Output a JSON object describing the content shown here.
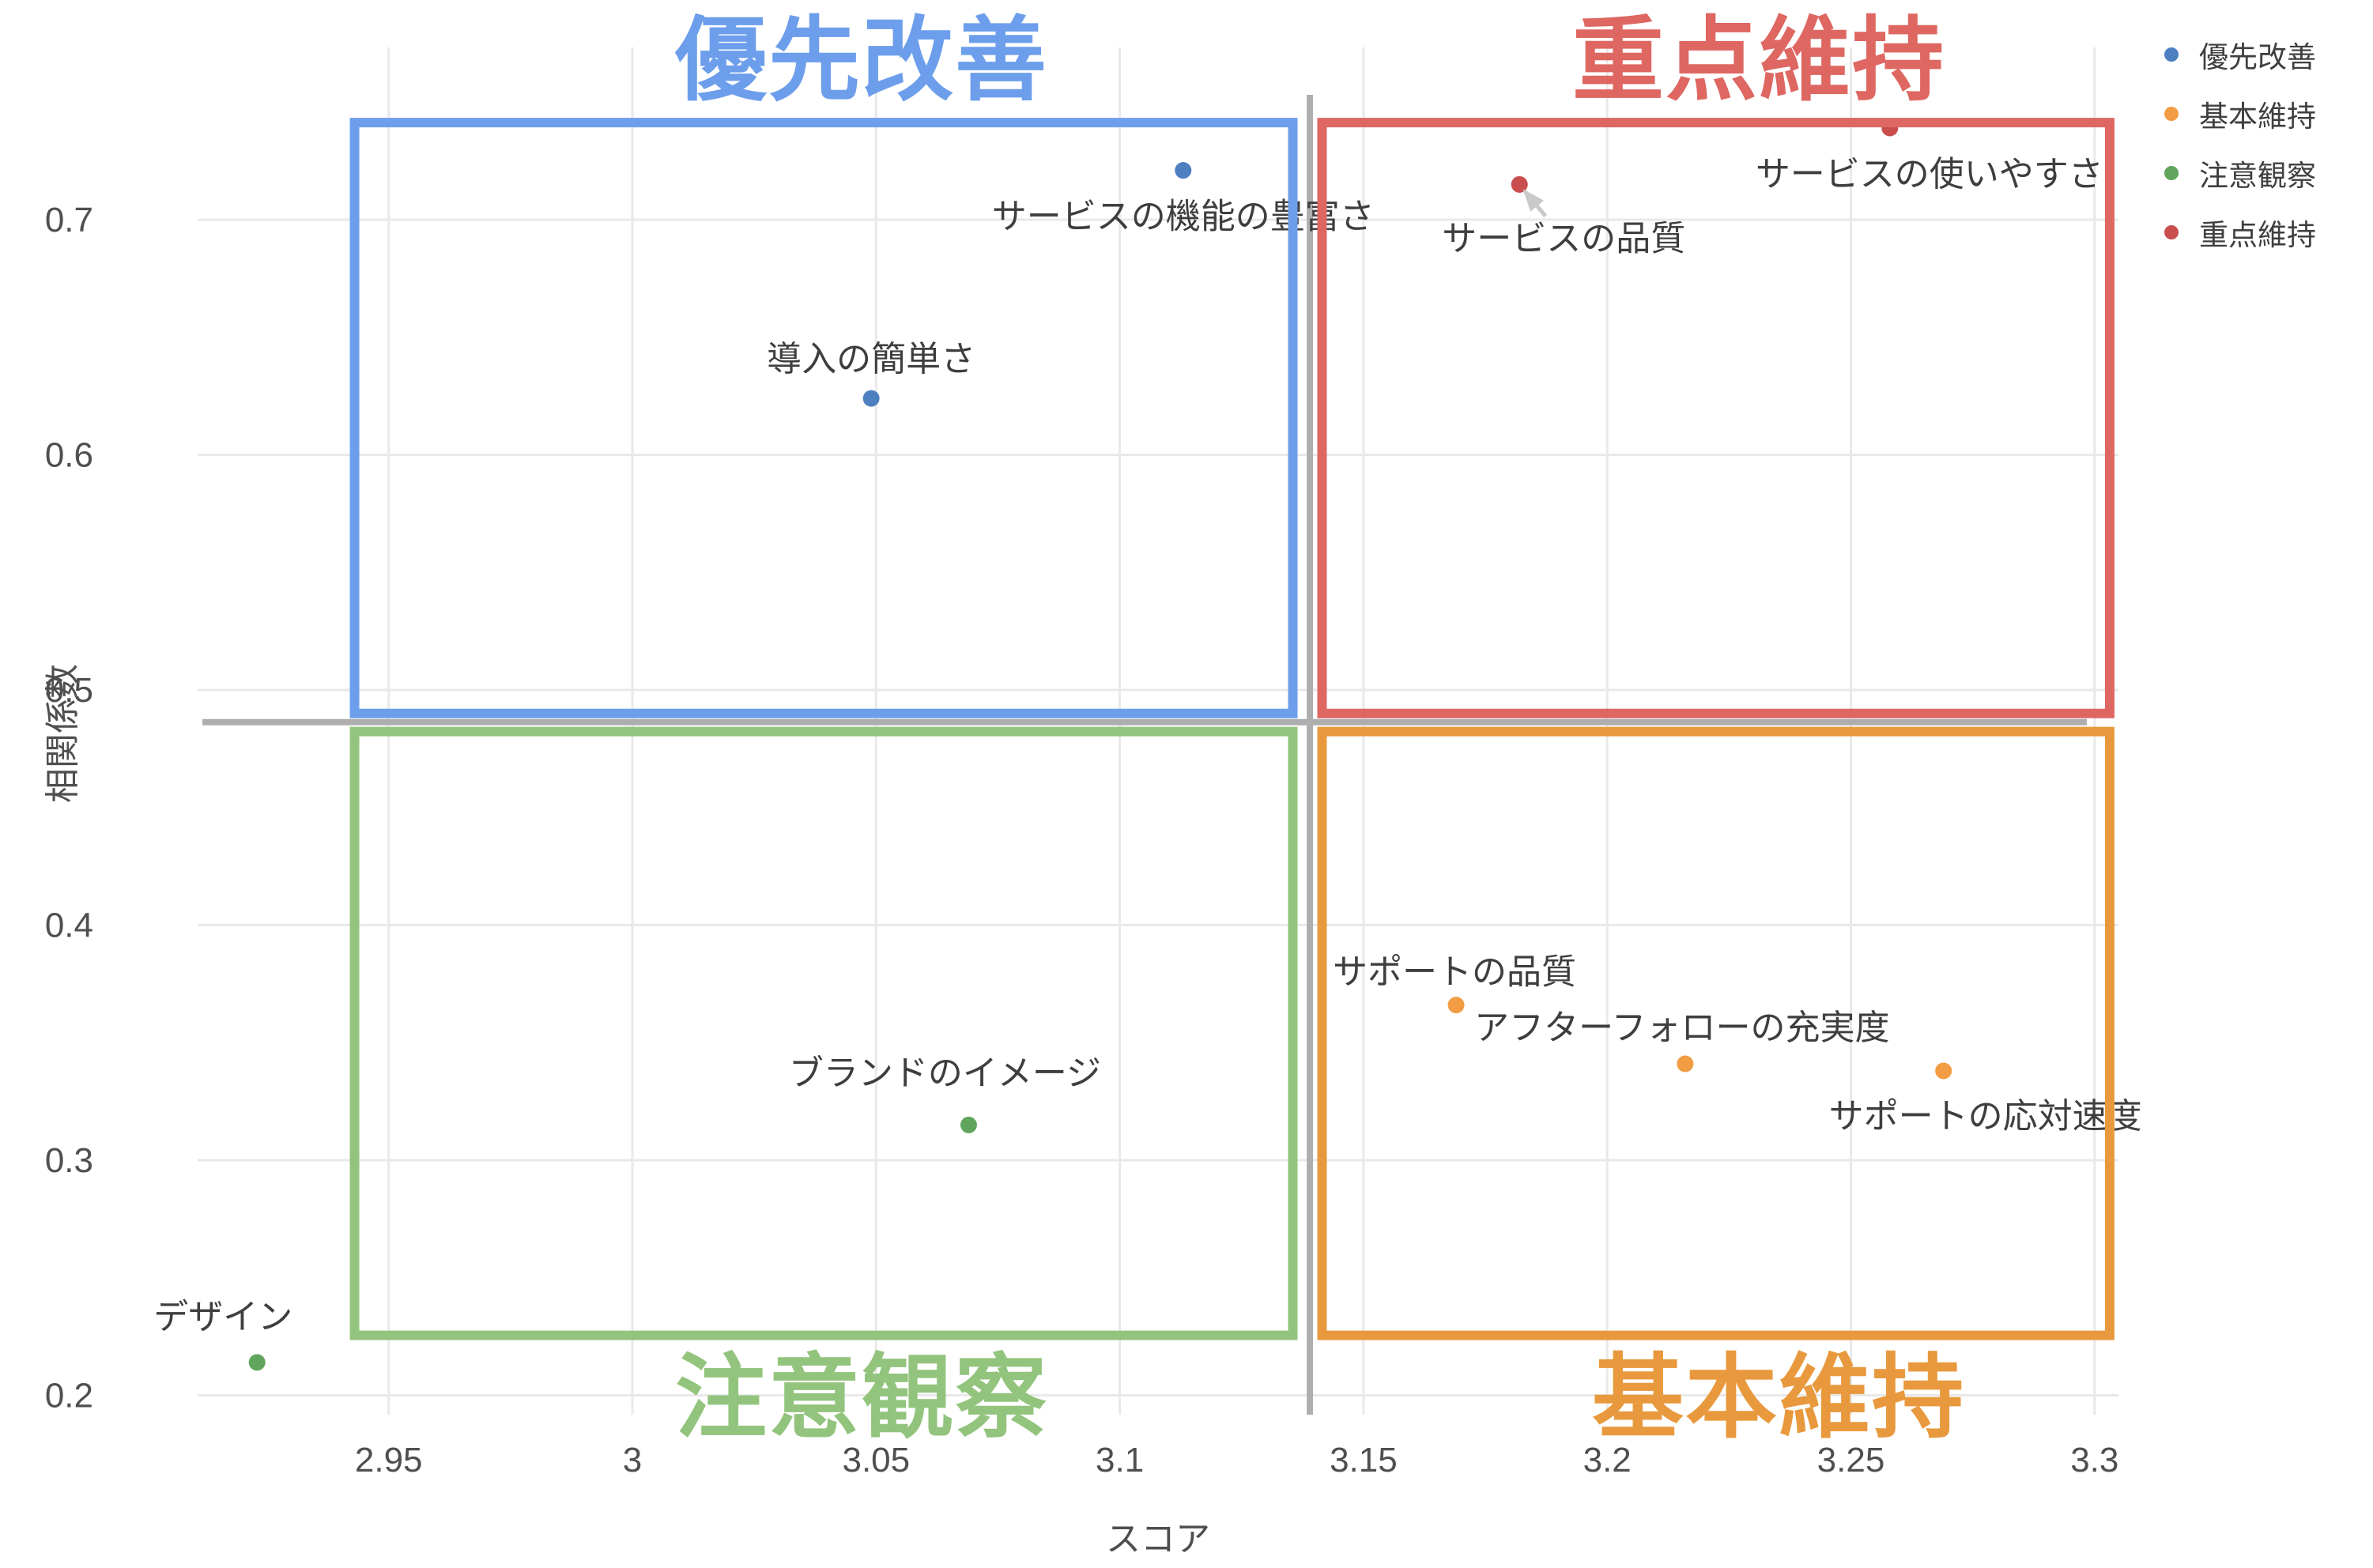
{
  "chart_data": {
    "type": "scatter",
    "title": "",
    "xlabel": "スコア",
    "ylabel": "相関係数",
    "xlim": [
      2.91,
      3.305
    ],
    "ylim": [
      0.192,
      0.773
    ],
    "grid": true,
    "legend_position": "top-right",
    "x_ticks": [
      {
        "v": 2.95,
        "label": "2.95"
      },
      {
        "v": 3.0,
        "label": "3"
      },
      {
        "v": 3.05,
        "label": "3.05"
      },
      {
        "v": 3.1,
        "label": "3.1"
      },
      {
        "v": 3.15,
        "label": "3.15"
      },
      {
        "v": 3.2,
        "label": "3.2"
      },
      {
        "v": 3.25,
        "label": "3.25"
      },
      {
        "v": 3.3,
        "label": "3.3"
      }
    ],
    "y_ticks": [
      {
        "v": 0.2,
        "label": "0.2"
      },
      {
        "v": 0.3,
        "label": "0.3"
      },
      {
        "v": 0.4,
        "label": "0.4"
      },
      {
        "v": 0.5,
        "label": "0.5"
      },
      {
        "v": 0.6,
        "label": "0.6"
      },
      {
        "v": 0.7,
        "label": "0.7"
      }
    ],
    "dividers": {
      "x": 3.139,
      "y": 0.4863
    },
    "quadrants": [
      {
        "id": "priority-improve",
        "title": "優先改善",
        "color": "#6d9eeb",
        "x0": 2.943,
        "x1": 3.1355,
        "y0": 0.49,
        "y1": 0.7413,
        "title_side": "top"
      },
      {
        "id": "key-maintain",
        "title": "重点維持",
        "color": "#de6762",
        "x0": 3.1415,
        "x1": 3.3031,
        "y0": 0.49,
        "y1": 0.7413,
        "title_side": "top"
      },
      {
        "id": "watch",
        "title": "注意観察",
        "color": "#93c47d",
        "x0": 2.943,
        "x1": 3.1355,
        "y0": 0.2255,
        "y1": 0.4823,
        "title_side": "bottom"
      },
      {
        "id": "basic-maintain",
        "title": "基本維持",
        "color": "#e9993d",
        "x0": 3.1415,
        "x1": 3.3031,
        "y0": 0.2255,
        "y1": 0.4823,
        "title_side": "bottom"
      }
    ],
    "series": [
      {
        "name": "優先改善",
        "color": "#4e7fc0",
        "points": [
          {
            "label": "サービスの機能の豊富さ",
            "x": 3.113,
            "y": 0.721,
            "label_dx": 0,
            "label_dy": 58
          },
          {
            "label": "導入の簡単さ",
            "x": 3.049,
            "y": 0.624,
            "label_dx": 0,
            "label_dy": -50
          }
        ]
      },
      {
        "name": "基本維持",
        "color": "#f29c44",
        "points": [
          {
            "label": "サポートの品質",
            "x": 3.169,
            "y": 0.366,
            "label_dx": -2,
            "label_dy": -42
          },
          {
            "label": "アフターフォローの充実度",
            "x": 3.216,
            "y": 0.341,
            "label_dx": -4,
            "label_dy": -46
          },
          {
            "label": "サポートの応対速度",
            "x": 3.269,
            "y": 0.338,
            "label_dx": 53,
            "label_dy": 57
          }
        ]
      },
      {
        "name": "注意観察",
        "color": "#60a55c",
        "points": [
          {
            "label": "ブランドのイメージ",
            "x": 3.069,
            "y": 0.315,
            "label_dx": -30,
            "label_dy": -66
          },
          {
            "label": "デザイン",
            "x": 2.923,
            "y": 0.214,
            "label_dx": -43,
            "label_dy": -58
          }
        ]
      },
      {
        "name": "重点維持",
        "color": "#ca4e4e",
        "points": [
          {
            "label": "サービスの品質",
            "x": 3.182,
            "y": 0.715,
            "label_dx": 56,
            "label_dy": 68,
            "arrow": true
          },
          {
            "label": "サービスの使いやすさ",
            "x": 3.258,
            "y": 0.739,
            "label_dx": 50,
            "label_dy": 58
          }
        ]
      }
    ],
    "legend": [
      {
        "label": "優先改善",
        "color": "#4e7fc0"
      },
      {
        "label": "基本維持",
        "color": "#f29c44"
      },
      {
        "label": "注意観察",
        "color": "#60a55c"
      },
      {
        "label": "重点維持",
        "color": "#ca4e4e"
      }
    ],
    "colors": {
      "gridline": "#e9e9e9",
      "divider": "#aeaeae",
      "tick_text": "#4f4f4f",
      "point_label_text": "#3e3e3e",
      "annotation_arrow": "#c9c9c9",
      "background": "#ffffff"
    }
  }
}
